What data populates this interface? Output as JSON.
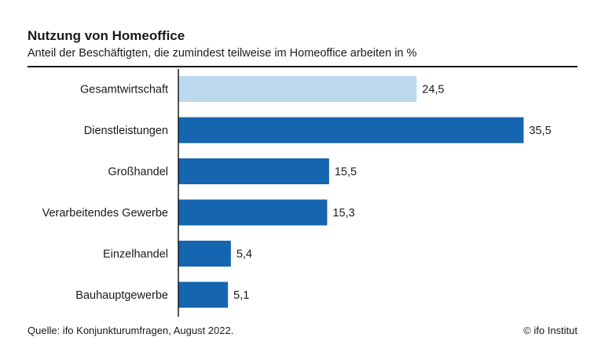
{
  "header": {
    "title": "Nutzung von Homeoffice",
    "subtitle": "Anteil der Beschäftigten, die zumindest teilweise im Homeoffice arbeiten in %"
  },
  "footer": {
    "source": "Quelle: ifo Konjunkturumfragen, August 2022.",
    "copyright": "© ifo Institut"
  },
  "chart_data": {
    "type": "bar",
    "orientation": "horizontal",
    "title": "Nutzung von Homeoffice",
    "subtitle": "Anteil der Beschäftigten, die zumindest teilweise im Homeoffice arbeiten in %",
    "categories": [
      "Gesamtwirtschaft",
      "Dienstleistungen",
      "Großhandel",
      "Verarbeitendes Gewerbe",
      "Einzelhandel",
      "Bauhauptgewerbe"
    ],
    "values": [
      24.5,
      35.5,
      15.5,
      15.3,
      5.4,
      5.1
    ],
    "value_labels": [
      "24,5",
      "35,5",
      "15,5",
      "15,3",
      "5,4",
      "5,1"
    ],
    "xlim": [
      0,
      37
    ],
    "grid": false,
    "legend": "none",
    "colors": {
      "highlight": "#bcd9ee",
      "bar": "#1565b0",
      "axis": "#1a1a1a"
    },
    "bar_color_keys": [
      "highlight",
      "bar",
      "bar",
      "bar",
      "bar",
      "bar"
    ]
  }
}
